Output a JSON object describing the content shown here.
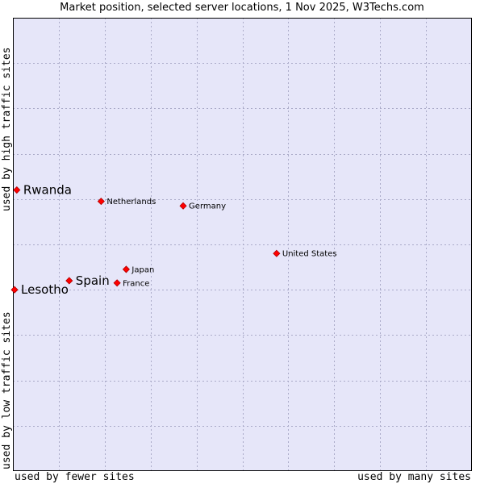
{
  "chart_data": {
    "type": "scatter",
    "title": "Market position, selected server locations, 1 Nov 2025, W3Techs.com",
    "x_axis": {
      "low_label": "used by fewer sites",
      "high_label": "used by many sites",
      "range": [
        0,
        10
      ]
    },
    "y_axis": {
      "low_label": "used by low traffic sites",
      "high_label": "used by high traffic sites",
      "range": [
        0,
        10
      ]
    },
    "grid": true,
    "points": [
      {
        "label": "Rwanda",
        "x": 0.05,
        "y": 6.2,
        "emphasis": true
      },
      {
        "label": "Netherlands",
        "x": 1.9,
        "y": 5.95,
        "emphasis": false
      },
      {
        "label": "Germany",
        "x": 3.7,
        "y": 5.85,
        "emphasis": false
      },
      {
        "label": "United States",
        "x": 5.75,
        "y": 4.8,
        "emphasis": false
      },
      {
        "label": "Japan",
        "x": 2.45,
        "y": 4.45,
        "emphasis": false
      },
      {
        "label": "Spain",
        "x": 1.2,
        "y": 4.2,
        "emphasis": true
      },
      {
        "label": "France",
        "x": 2.25,
        "y": 4.15,
        "emphasis": false
      },
      {
        "label": "Lesotho",
        "x": 0.0,
        "y": 4.0,
        "emphasis": true
      }
    ]
  },
  "colors": {
    "plot_background": "#e6e6f9",
    "grid": "#aaaac8",
    "frame": "#000000",
    "marker": "#ff0000",
    "marker_stroke": "#b00000"
  }
}
